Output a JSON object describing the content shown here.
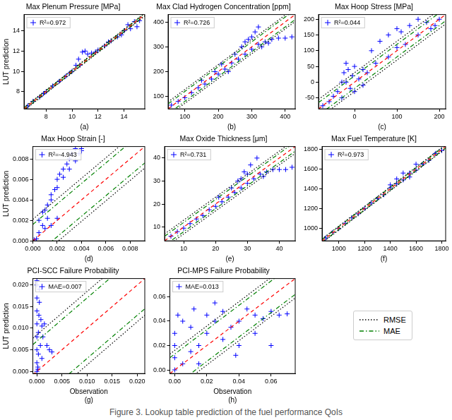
{
  "caption": "Figure 3. Lookup table prediction of the fuel performance QoIs",
  "identity_line": {
    "color": "#ff0000",
    "line_style": "dashed"
  },
  "reference_lines": [
    {
      "name": "RMSE",
      "color": "#000000",
      "line_style": "dotted"
    },
    {
      "name": "MAE",
      "color": "#008000",
      "line_style": "dashdot"
    }
  ],
  "chart_data": [
    {
      "type": "scatter",
      "title": "Max Plenum Pressure [MPa]",
      "ylabel": "LUT prediction",
      "panel": "(a)",
      "grid": false,
      "xlim": [
        6.3,
        15.6
      ],
      "ylim": [
        6.3,
        15.6
      ],
      "xticks": [
        8,
        10,
        12,
        14
      ],
      "yticks": [
        8,
        10,
        12,
        14
      ],
      "error_bands": {
        "RMSE": 0.15,
        "MAE": 0.1
      },
      "series": [
        {
          "name": "R²=0.972",
          "color": "#0000ff",
          "marker": "plus",
          "x": [
            6.6,
            7,
            7.5,
            7.8,
            8,
            8.5,
            9,
            9.5,
            9.8,
            10,
            10.3,
            10.5,
            10.6,
            10.8,
            11,
            11.2,
            11.5,
            11.8,
            12,
            12.5,
            12.8,
            13,
            13.5,
            13.8,
            14,
            14.3,
            14.5,
            14.8,
            15,
            15.2
          ],
          "values": [
            6.6,
            7.05,
            7.45,
            7.8,
            8.0,
            8.55,
            9.0,
            9.5,
            9.8,
            10.0,
            10.6,
            11.2,
            10.6,
            11.9,
            12.0,
            11.7,
            11.8,
            11.9,
            12.1,
            12.5,
            12.9,
            13.0,
            13.4,
            13.6,
            14.0,
            14.6,
            14.2,
            14.9,
            14.4,
            15.0
          ]
        }
      ]
    },
    {
      "type": "scatter",
      "title": "Max Clad Hydrogen Concentration [ppm]",
      "panel": "(b)",
      "grid": false,
      "xlim": [
        50,
        430
      ],
      "ylim": [
        50,
        430
      ],
      "xticks": [
        100,
        200,
        300,
        400
      ],
      "yticks": [
        100,
        200,
        300,
        400
      ],
      "error_bands": {
        "RMSE": 28,
        "MAE": 20
      },
      "series": [
        {
          "name": "R²=0.726",
          "color": "#0000ff",
          "marker": "plus",
          "x": [
            60,
            80,
            100,
            120,
            140,
            150,
            160,
            180,
            190,
            200,
            210,
            220,
            230,
            240,
            250,
            260,
            270,
            280,
            280,
            290,
            300,
            300,
            310,
            320,
            320,
            330,
            340,
            350,
            360,
            380,
            400,
            420
          ],
          "values": [
            65,
            80,
            95,
            115,
            135,
            165,
            150,
            170,
            200,
            190,
            230,
            210,
            200,
            235,
            270,
            250,
            300,
            270,
            320,
            330,
            290,
            340,
            360,
            380,
            310,
            300,
            320,
            315,
            330,
            335,
            335,
            340
          ]
        }
      ]
    },
    {
      "type": "scatter",
      "title": "Max Hoop Stress [MPa]",
      "panel": "(c)",
      "grid": false,
      "xlim": [
        -85,
        215
      ],
      "ylim": [
        -85,
        215
      ],
      "xticks": [
        0,
        100,
        200
      ],
      "yticks": [
        -50,
        0,
        50,
        100,
        150,
        200
      ],
      "error_bands": {
        "RMSE": 30,
        "MAE": 20
      },
      "series": [
        {
          "name": "R²=0.044",
          "color": "#0000ff",
          "marker": "plus",
          "x": [
            -75,
            -60,
            -50,
            -40,
            -30,
            -30,
            -25,
            -20,
            -20,
            -15,
            -10,
            -5,
            0,
            0,
            10,
            20,
            20,
            30,
            40,
            50,
            60,
            80,
            80,
            100,
            100,
            110,
            120,
            130,
            150,
            150,
            170,
            180,
            190,
            200
          ],
          "values": [
            -75,
            -62,
            -45,
            -30,
            -50,
            0,
            30,
            60,
            0,
            40,
            -20,
            20,
            50,
            -30,
            10,
            40,
            -10,
            30,
            100,
            60,
            130,
            80,
            150,
            110,
            170,
            160,
            120,
            180,
            150,
            200,
            190,
            170,
            180,
            200
          ]
        }
      ]
    },
    {
      "type": "scatter",
      "title": "Max Hoop Strain [-]",
      "ylabel": "LUT prediction",
      "panel": "(d)",
      "grid": false,
      "xlim": [
        0,
        0.0092
      ],
      "ylim": [
        0,
        0.0092
      ],
      "xticks": [
        {
          "value": 0,
          "label": "0.000"
        },
        {
          "value": 0.002,
          "label": "0.002"
        },
        {
          "value": 0.004,
          "label": "0.004"
        },
        {
          "value": 0.006,
          "label": "0.006"
        },
        {
          "value": 0.008,
          "label": "0.008"
        }
      ],
      "yticks": [
        {
          "value": 0,
          "label": "0.000"
        },
        {
          "value": 0.002,
          "label": "0.002"
        },
        {
          "value": 0.004,
          "label": "0.004"
        },
        {
          "value": 0.006,
          "label": "0.006"
        },
        {
          "value": 0.008,
          "label": "0.008"
        }
      ],
      "error_bands": {
        "RMSE": 0.0021,
        "MAE": 0.0016
      },
      "series": [
        {
          "name": "R²=-4.943",
          "color": "#0000ff",
          "marker": "plus",
          "x": [
            0.0001,
            0.0003,
            0.0005,
            0.0005,
            0.0008,
            0.0008,
            0.001,
            0.001,
            0.0012,
            0.0012,
            0.0015,
            0.0015,
            0.0015,
            0.0018,
            0.002,
            0.002,
            0.002,
            0.0022,
            0.0025,
            0.0025,
            0.0028,
            0.003,
            0.003,
            0.0032,
            0.0035,
            0.0035,
            0.0038,
            0.004,
            0.004
          ],
          "values": [
            0.0001,
            0.0002,
            0.0008,
            0.002,
            0.0028,
            0.0015,
            0.003,
            0.0012,
            0.0035,
            0.0022,
            0.004,
            0.0045,
            0.0015,
            0.005,
            0.006,
            0.0052,
            0.0022,
            0.0065,
            0.007,
            0.0062,
            0.0075,
            0.008,
            0.007,
            0.0085,
            0.009,
            0.0078,
            0.0085,
            0.0088,
            0.009
          ]
        }
      ]
    },
    {
      "type": "scatter",
      "title": "Max Oxide Thickness [μm]",
      "panel": "(e)",
      "grid": false,
      "xlim": [
        4,
        45
      ],
      "ylim": [
        4,
        45
      ],
      "xticks": [
        10,
        20,
        30,
        40
      ],
      "yticks": [
        10,
        20,
        30,
        40
      ],
      "error_bands": {
        "RMSE": 3,
        "MAE": 2
      },
      "series": [
        {
          "name": "R²=0.731",
          "color": "#0000ff",
          "marker": "plus",
          "x": [
            6,
            8,
            10,
            12,
            14,
            16,
            18,
            20,
            21,
            22,
            24,
            25,
            26,
            27,
            28,
            28,
            29,
            30,
            30,
            31,
            32,
            33,
            34,
            35,
            36,
            38,
            40,
            42,
            44
          ],
          "values": [
            6,
            8,
            9.5,
            11.5,
            13.5,
            15,
            17.5,
            19,
            23,
            21,
            23,
            27,
            25,
            30,
            27,
            31,
            34,
            29,
            33,
            37,
            31,
            40,
            33,
            32,
            34,
            35,
            35,
            35,
            36
          ]
        }
      ]
    },
    {
      "type": "scatter",
      "title": "Max Fuel Temperature [K]",
      "panel": "(f)",
      "grid": false,
      "xlim": [
        870,
        1830
      ],
      "ylim": [
        870,
        1830
      ],
      "xticks": [
        1000,
        1200,
        1400,
        1600,
        1800
      ],
      "yticks": [
        1000,
        1200,
        1400,
        1600,
        1800
      ],
      "error_bands": {
        "RMSE": 20,
        "MAE": 15
      },
      "series": [
        {
          "name": "R²=0.973",
          "color": "#0000ff",
          "marker": "plus",
          "x": [
            900,
            950,
            1000,
            1050,
            1100,
            1150,
            1200,
            1250,
            1300,
            1350,
            1400,
            1400,
            1450,
            1450,
            1500,
            1500,
            1550,
            1550,
            1600,
            1600,
            1650,
            1700,
            1750,
            1800
          ],
          "values": [
            900,
            955,
            995,
            1050,
            1105,
            1145,
            1200,
            1255,
            1300,
            1340,
            1410,
            1440,
            1450,
            1500,
            1490,
            1560,
            1560,
            1520,
            1590,
            1650,
            1650,
            1690,
            1760,
            1790
          ]
        }
      ]
    },
    {
      "type": "scatter",
      "title": "PCI-SCC Failure Probability",
      "ylabel": "LUT prediction",
      "xlabel": "Observation",
      "panel": "(g)",
      "grid": false,
      "xlim": [
        -0.0008,
        0.0215
      ],
      "ylim": [
        -0.0005,
        0.0215
      ],
      "xticks": [
        {
          "value": 0,
          "label": "0.000"
        },
        {
          "value": 0.005,
          "label": "0.005"
        },
        {
          "value": 0.01,
          "label": "0.010"
        },
        {
          "value": 0.015,
          "label": "0.015"
        },
        {
          "value": 0.02,
          "label": "0.020"
        }
      ],
      "yticks": [
        {
          "value": 0,
          "label": "0.000"
        },
        {
          "value": 0.005,
          "label": "0.005"
        },
        {
          "value": 0.01,
          "label": "0.010"
        },
        {
          "value": 0.015,
          "label": "0.015"
        },
        {
          "value": 0.02,
          "label": "0.020"
        }
      ],
      "error_bands": {
        "RMSE": 0.0085,
        "MAE": 0.007
      },
      "series": [
        {
          "name": "MAE=0.007",
          "color": "#0000ff",
          "marker": "plus",
          "x": [
            0,
            0,
            0,
            0,
            0,
            0,
            0,
            0,
            0,
            0.0002,
            0.0002,
            0.0003,
            0.0003,
            0.0004,
            0.0005,
            0.0005,
            0.0007,
            0.0008,
            0.001,
            0.001,
            0.0012,
            0.0015,
            0.002,
            0.0025,
            0.003
          ],
          "values": [
            0,
            0.002,
            0.005,
            0.008,
            0.011,
            0.014,
            0.017,
            0.02,
            0.021,
            0.001,
            0.0005,
            0.004,
            0.009,
            0.013,
            0.016,
            0.019,
            0.006,
            0.012,
            0.0105,
            0.003,
            0.008,
            0.011,
            0.006,
            0.005,
            0.0045
          ]
        }
      ]
    },
    {
      "type": "scatter",
      "title": "PCI-MPS Failure Probability",
      "xlabel": "Observation",
      "panel": "(h)",
      "grid": false,
      "xlim": [
        -0.003,
        0.075
      ],
      "ylim": [
        -0.003,
        0.075
      ],
      "xticks": [
        {
          "value": 0,
          "label": "0.00"
        },
        {
          "value": 0.02,
          "label": "0.02"
        },
        {
          "value": 0.04,
          "label": "0.04"
        },
        {
          "value": 0.06,
          "label": "0.06"
        }
      ],
      "yticks": [
        {
          "value": 0,
          "label": "0.00"
        },
        {
          "value": 0.02,
          "label": "0.02"
        },
        {
          "value": 0.04,
          "label": "0.04"
        },
        {
          "value": 0.06,
          "label": "0.06"
        }
      ],
      "error_bands": {
        "RMSE": 0.016,
        "MAE": 0.013
      },
      "series": [
        {
          "name": "MAE=0.013",
          "color": "#0000ff",
          "marker": "plus",
          "x": [
            0,
            0,
            0,
            0,
            0.002,
            0.005,
            0.005,
            0.01,
            0.01,
            0.012,
            0.015,
            0.015,
            0.02,
            0.02,
            0.025,
            0.025,
            0.03,
            0.03,
            0.035,
            0.038,
            0.04,
            0.04,
            0.045,
            0.05,
            0.05,
            0.055,
            0.06,
            0.06,
            0.065,
            0.07
          ],
          "values": [
            0,
            0.01,
            0.02,
            0.03,
            0.045,
            0.04,
            0.005,
            0.015,
            0.035,
            0.05,
            0.02,
            0.005,
            0.03,
            0.045,
            0.04,
            0.055,
            0.025,
            0.048,
            0.035,
            0.012,
            0.04,
            0.02,
            0.05,
            0.03,
            0.045,
            0.042,
            0.048,
            0.02,
            0.045,
            0.046
          ]
        }
      ]
    }
  ]
}
